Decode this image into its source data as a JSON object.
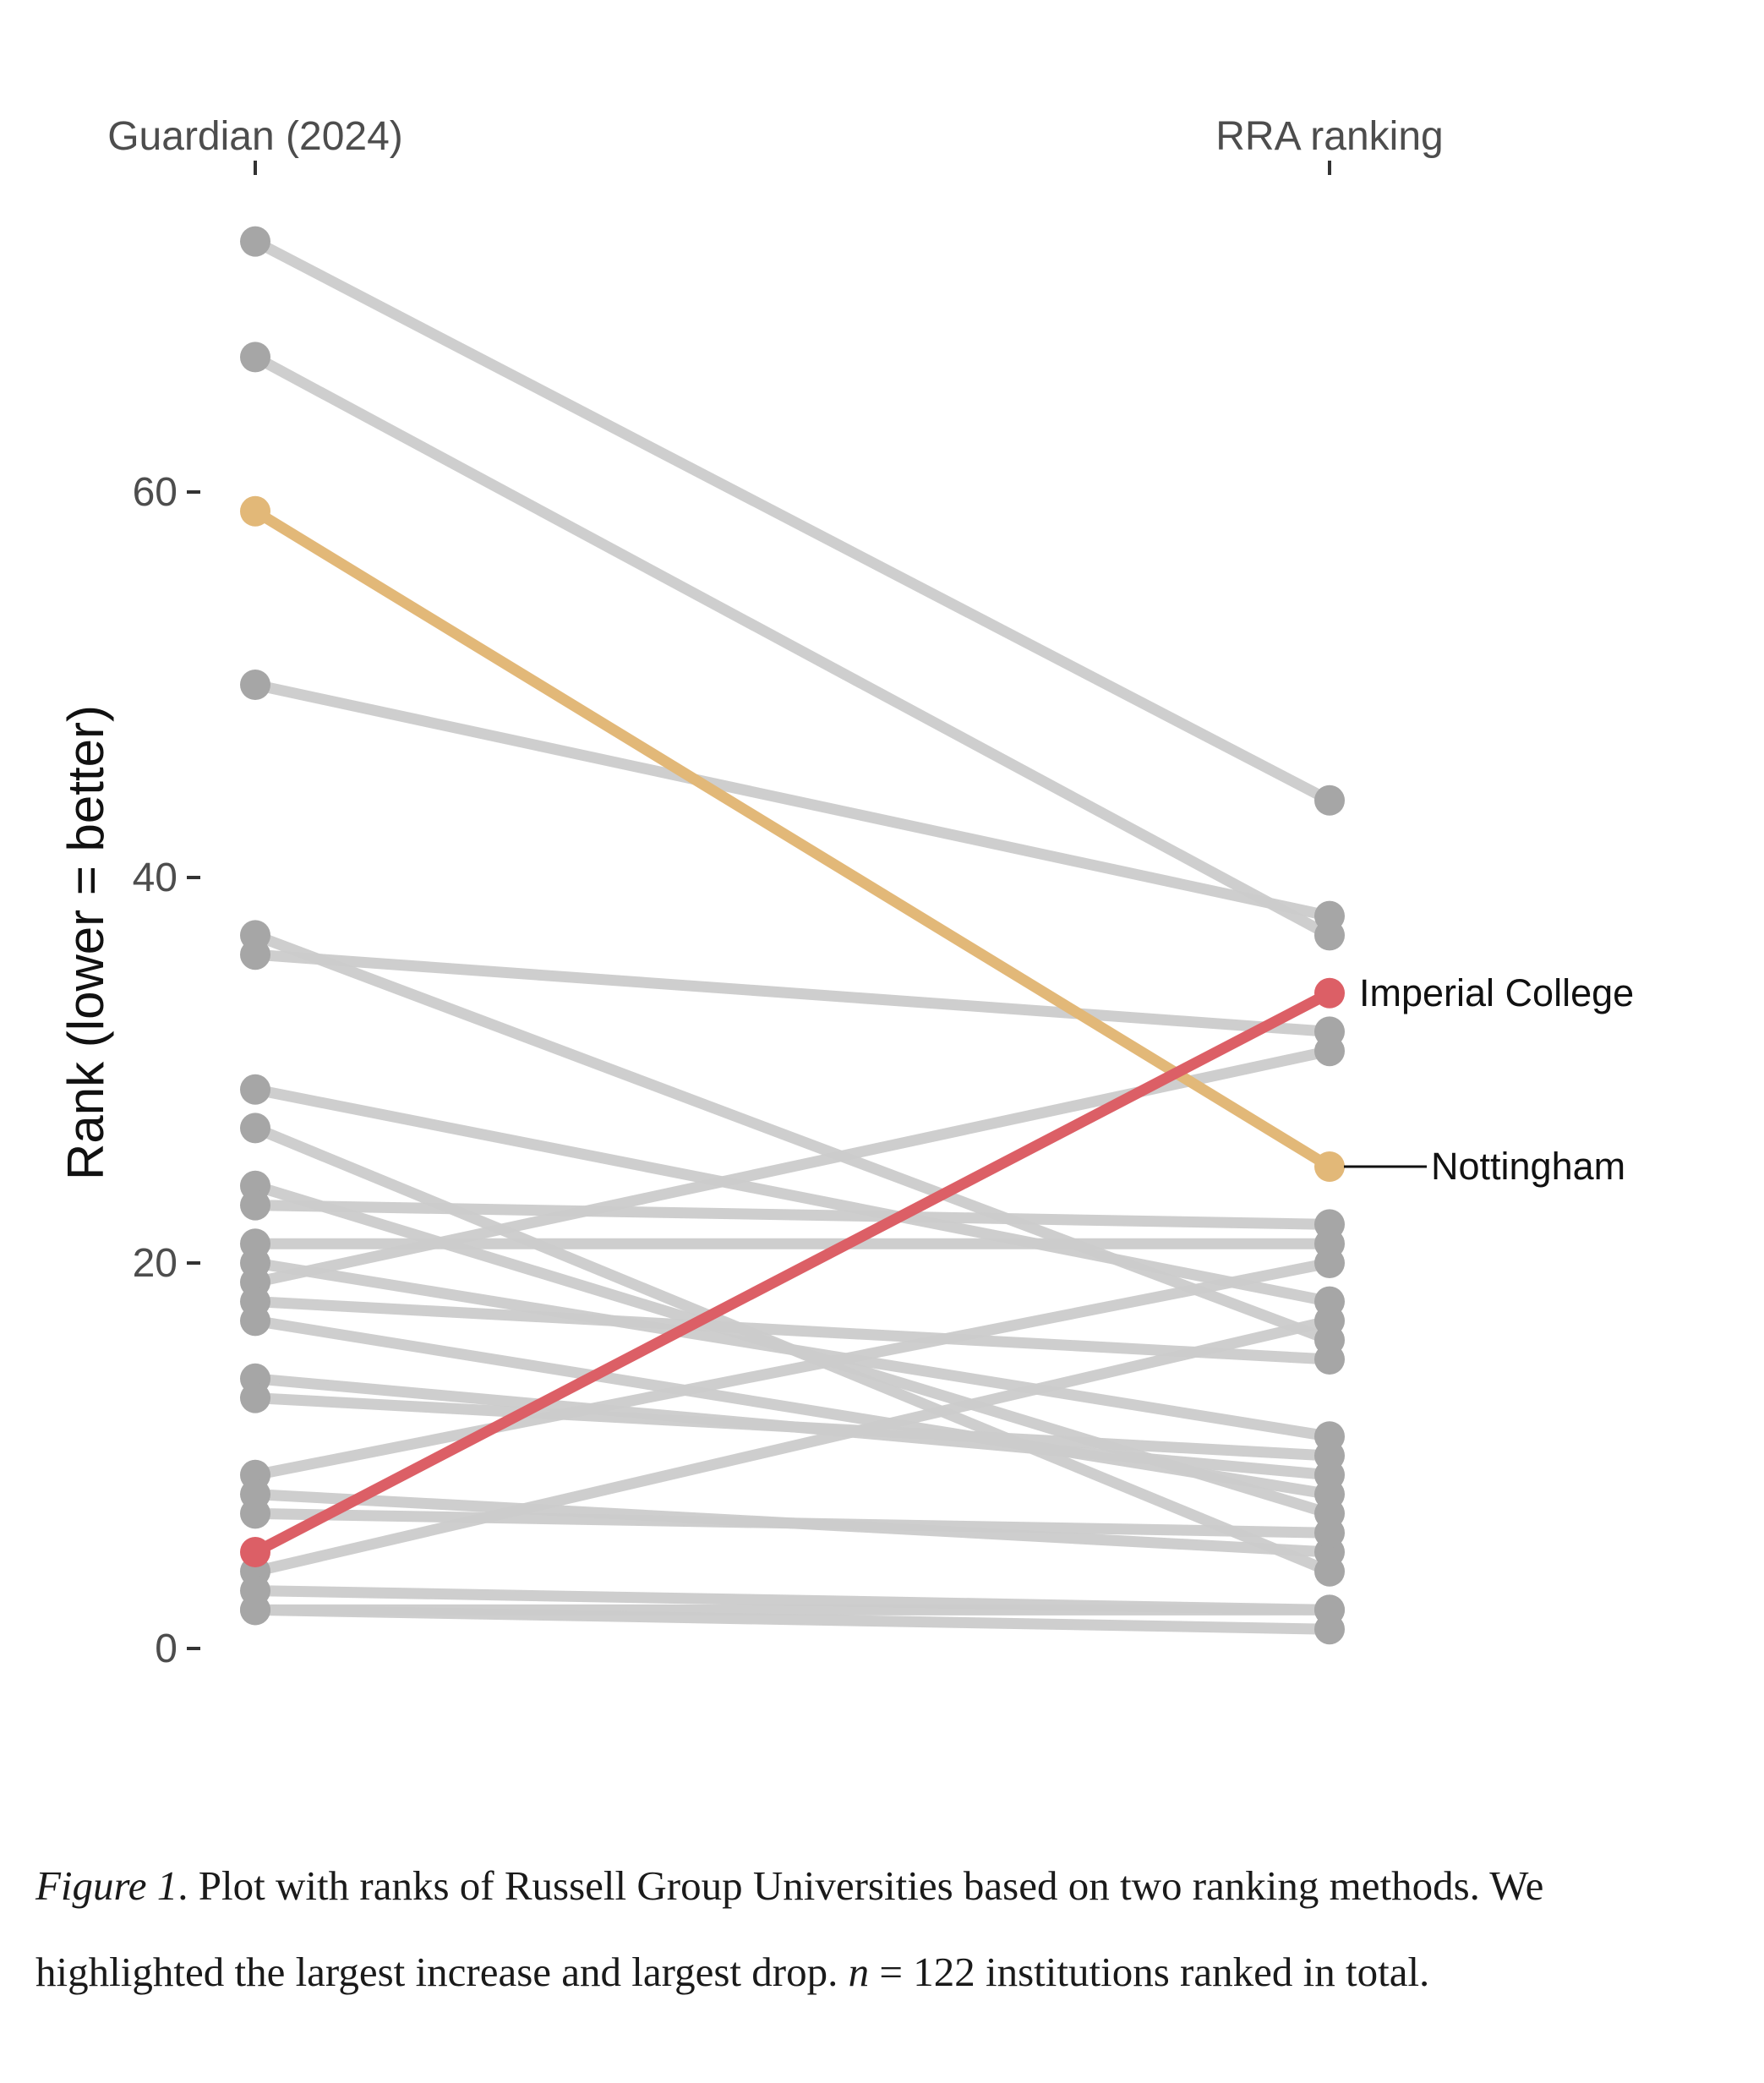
{
  "chart_data": {
    "type": "line",
    "axes": [
      "Guardian (2024)",
      "RRA ranking"
    ],
    "ylabel": "Rank (lower = better)",
    "ylim": [
      0,
      73
    ],
    "yticks": [
      0,
      20,
      40,
      60
    ],
    "grid": false,
    "series": [
      {
        "values": [
          73,
          44
        ],
        "highlight": false
      },
      {
        "values": [
          67,
          37
        ],
        "highlight": false
      },
      {
        "values": [
          50,
          38
        ],
        "highlight": false
      },
      {
        "values": [
          37,
          16
        ],
        "highlight": false
      },
      {
        "values": [
          36,
          32
        ],
        "highlight": false
      },
      {
        "values": [
          29,
          18
        ],
        "highlight": false
      },
      {
        "values": [
          27,
          4
        ],
        "highlight": false
      },
      {
        "values": [
          24,
          7
        ],
        "highlight": false
      },
      {
        "values": [
          23,
          22
        ],
        "highlight": false
      },
      {
        "values": [
          21,
          21
        ],
        "highlight": false
      },
      {
        "values": [
          20,
          11
        ],
        "highlight": false
      },
      {
        "values": [
          19,
          31
        ],
        "highlight": false
      },
      {
        "values": [
          18,
          15
        ],
        "highlight": false
      },
      {
        "values": [
          17,
          8
        ],
        "highlight": false
      },
      {
        "values": [
          14,
          9
        ],
        "highlight": false
      },
      {
        "values": [
          13,
          10
        ],
        "highlight": false
      },
      {
        "values": [
          9,
          20
        ],
        "highlight": false
      },
      {
        "values": [
          8,
          5
        ],
        "highlight": false
      },
      {
        "values": [
          7,
          6
        ],
        "highlight": false
      },
      {
        "values": [
          4,
          17
        ],
        "highlight": false
      },
      {
        "values": [
          3,
          2
        ],
        "highlight": false
      },
      {
        "values": [
          2,
          2
        ],
        "highlight": false
      },
      {
        "values": [
          2,
          1
        ],
        "highlight": false
      },
      {
        "values": [
          59,
          25
        ],
        "highlight": true,
        "label": "Nottingham",
        "color": "#E2B878"
      },
      {
        "values": [
          5,
          34
        ],
        "highlight": true,
        "label": "Imperial College",
        "color": "#DC5F66"
      }
    ],
    "colors": {
      "default_line": "#cccccc",
      "default_point": "#a6a6a6",
      "axis_text": "#4d4d4d"
    }
  },
  "caption": {
    "figure_label": "Figure 1",
    "text_1": "Plot with ranks of Russell Group Universities based on two ranking methods. We highlighted the largest increase and largest drop.",
    "math_var": "n",
    "math_rel": "= 122",
    "text_2": "institutions ranked in total."
  }
}
